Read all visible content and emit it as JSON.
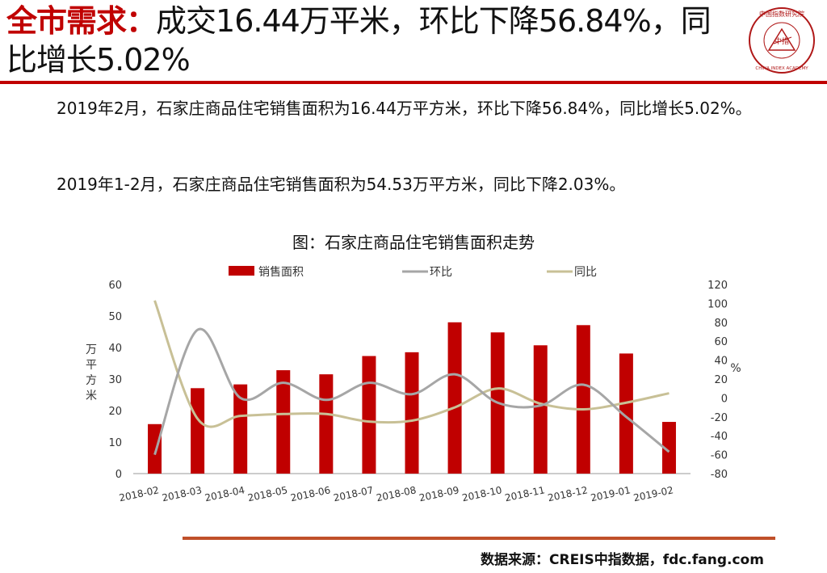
{
  "header": {
    "title_highlight": "全市需求：",
    "title_rest": "成交16.44万平米，环比下降56.84%，同比增长5.02%",
    "logo_text": "中国指数研究院",
    "logo_subtext": "CHINA INDEX ACADEMY",
    "logo_center": "中指"
  },
  "body": {
    "para1": "2019年2月，石家庄商品住宅销售面积为16.44万平方米，环比下降56.84%，同比增长5.02%。",
    "para2": "2019年1-2月，石家庄商品住宅销售面积为54.53万平方米，同比下降2.03%。"
  },
  "chart_title": "图：石家庄商品住宅销售面积走势",
  "chart_data": {
    "type": "bar",
    "categories": [
      "2018-02",
      "2018-03",
      "2018-04",
      "2018-05",
      "2018-06",
      "2018-07",
      "2018-08",
      "2018-09",
      "2018-10",
      "2018-11",
      "2018-12",
      "2019-01",
      "2019-02"
    ],
    "series": [
      {
        "name": "销售面积",
        "type": "bar",
        "axis": "left",
        "values": [
          15.7,
          27.1,
          28.3,
          32.8,
          31.5,
          37.3,
          38.5,
          48.0,
          44.8,
          40.7,
          47.1,
          38.1,
          16.4
        ]
      },
      {
        "name": "环比",
        "type": "line",
        "axis": "right",
        "values": [
          -60,
          72,
          0,
          16,
          -2,
          16,
          4,
          25,
          -5,
          -8,
          14,
          -20,
          -57
        ]
      },
      {
        "name": "同比",
        "type": "line",
        "axis": "right",
        "values": [
          103,
          -22,
          -19,
          -17,
          -17,
          -25,
          -24,
          -10,
          10,
          -6,
          -12,
          -5,
          5
        ]
      }
    ],
    "ylabel": "万平方米",
    "y2label": "%",
    "ylim": [
      0,
      60
    ],
    "y2lim": [
      -80,
      120
    ],
    "yticks": [
      0,
      10,
      20,
      30,
      40,
      50,
      60
    ],
    "y2ticks": [
      -80,
      -60,
      -40,
      -20,
      0,
      20,
      40,
      60,
      80,
      100,
      120
    ],
    "colors": {
      "bar": "#c00000",
      "mom": "#a6a6a6",
      "yoy": "#c8c096"
    },
    "legend": "top"
  },
  "footer": {
    "source": "数据来源：CREIS中指数据，fdc.fang.com"
  }
}
